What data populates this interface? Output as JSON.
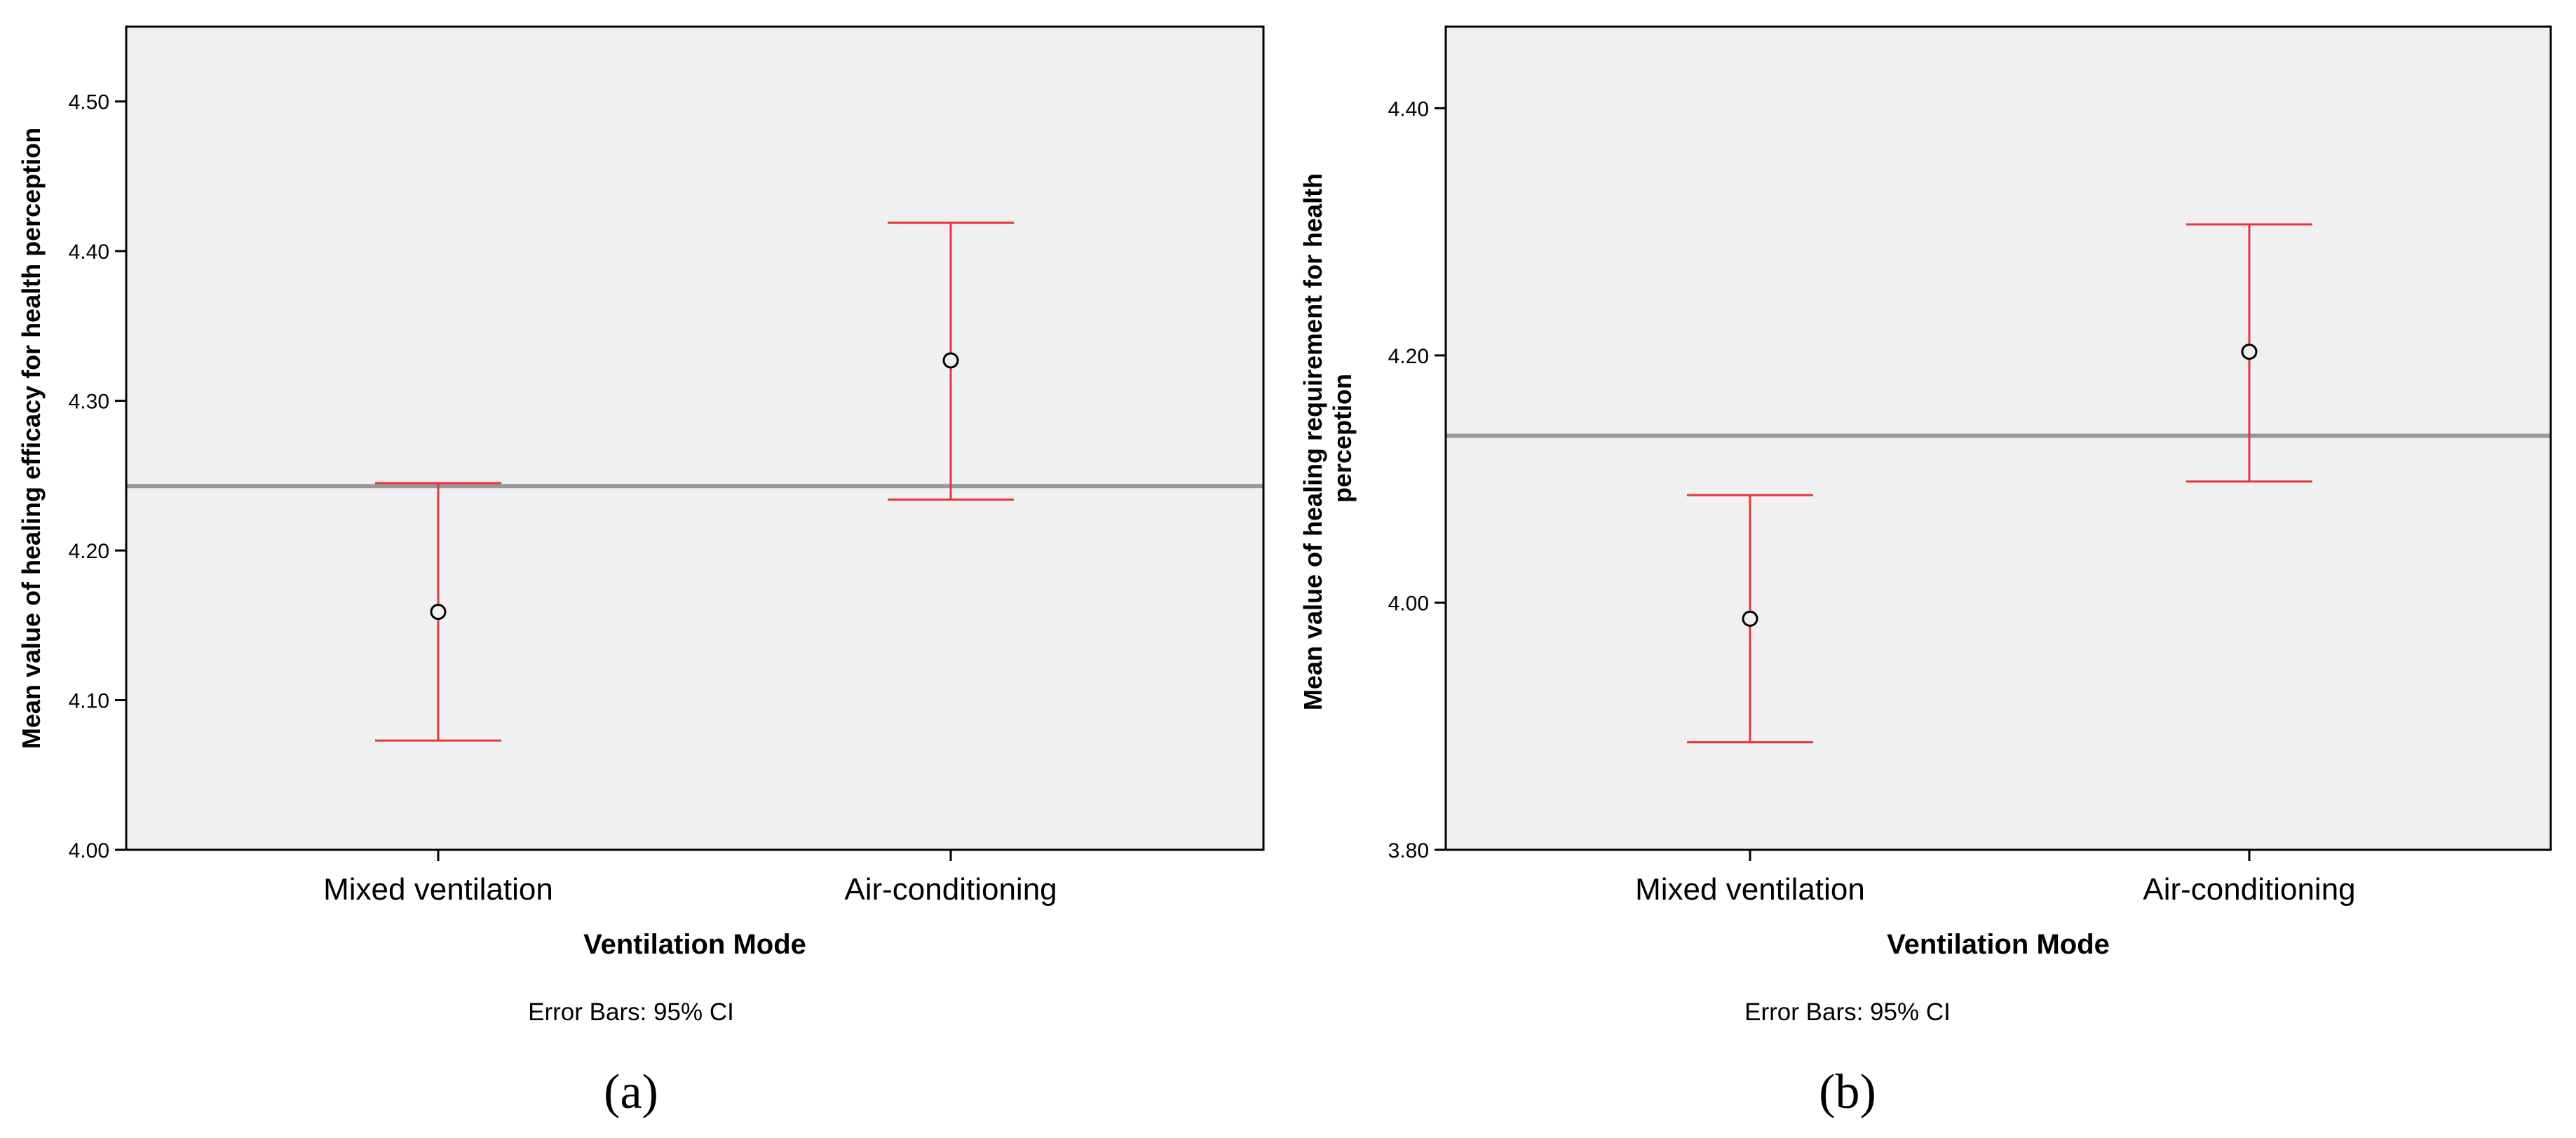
{
  "chart_data": [
    {
      "type": "error-bar",
      "panel_label": "(a)",
      "xlabel": "Ventilation Mode",
      "ylabel": "Mean value of healing efficacy for health perception",
      "note": "Error Bars: 95% CI",
      "categories": [
        "Mixed ventilation",
        "Air-conditioning"
      ],
      "means": [
        4.159,
        4.327
      ],
      "ci_lower": [
        4.073,
        4.234
      ],
      "ci_upper": [
        4.245,
        4.419
      ],
      "reference_line": 4.243,
      "ylim": [
        4.0,
        4.55
      ],
      "yticks": [
        4.0,
        4.1,
        4.2,
        4.3,
        4.4,
        4.5
      ],
      "ytick_labels": [
        "4.00",
        "4.10",
        "4.20",
        "4.30",
        "4.40",
        "4.50"
      ],
      "grid": false
    },
    {
      "type": "error-bar",
      "panel_label": "(b)",
      "xlabel": "Ventilation Mode",
      "ylabel_lines": [
        "Mean value of healing requirement for health",
        "perception"
      ],
      "note": "Error Bars: 95% CI",
      "categories": [
        "Mixed ventilation",
        "Air-conditioning"
      ],
      "means": [
        3.987,
        4.203
      ],
      "ci_lower": [
        3.887,
        4.098
      ],
      "ci_upper": [
        4.087,
        4.306
      ],
      "reference_line": 4.135,
      "ylim": [
        3.8,
        4.466
      ],
      "yticks": [
        3.8,
        4.0,
        4.2,
        4.4
      ],
      "ytick_labels": [
        "3.80",
        "4.00",
        "4.20",
        "4.40"
      ],
      "grid": false
    }
  ],
  "colors": {
    "plot_background": "#f0f0f0",
    "axis": "#000000",
    "error_bar": "#e8353a",
    "reference_line": "#999999",
    "marker_fill": "#f0f0f0"
  }
}
